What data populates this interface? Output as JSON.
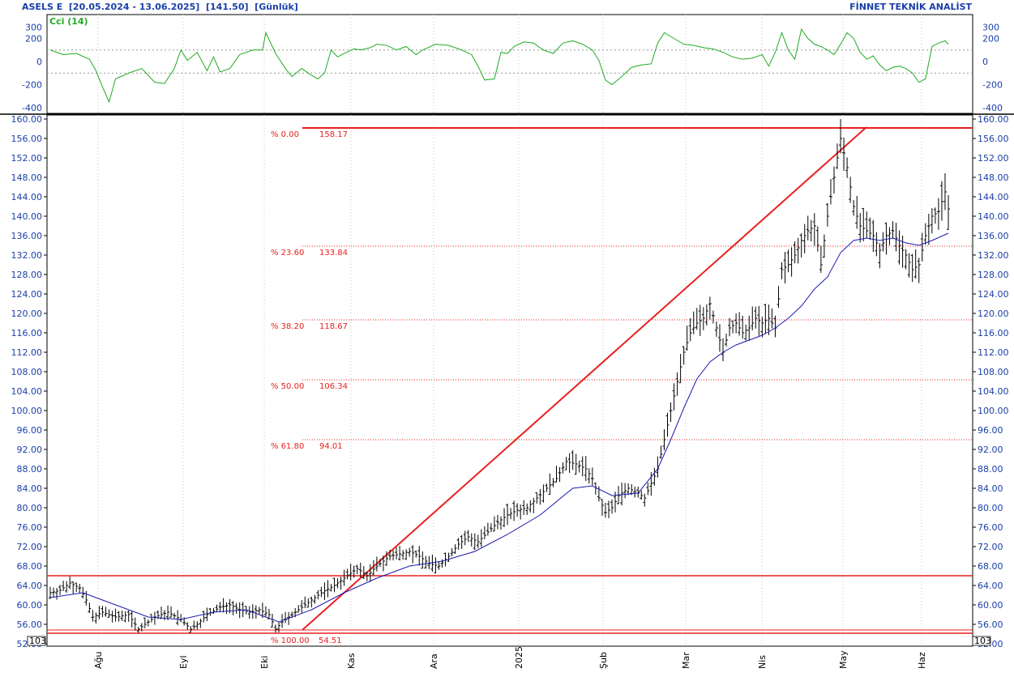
{
  "header": {
    "left": "ASELS E  [20.05.2024 - 13.06.2025]  [141.50]  [Günlük]",
    "right": "FİNNET TEKNİK ANALİST"
  },
  "indicator": {
    "name": "Cci (14)",
    "y_ticks": [
      "300",
      "200",
      "0",
      "-200",
      "-400"
    ],
    "color": "#22aa22"
  },
  "price_scale_note": "10^3",
  "colors": {
    "price_bars": "#000000",
    "moving_average": "#1a1ab0",
    "fib_lines": "#e8201e",
    "axis_labels": "#1a3fa8",
    "grid": "#cccccc"
  },
  "chart_data": {
    "type": "line",
    "symbol": "ASELS E",
    "y_ticks": [
      "160.00",
      "156.00",
      "152.00",
      "148.00",
      "144.00",
      "140.00",
      "136.00",
      "132.00",
      "128.00",
      "124.00",
      "120.00",
      "116.00",
      "112.00",
      "108.00",
      "104.00",
      "100.00",
      "96.00",
      "92.00",
      "88.00",
      "84.00",
      "80.00",
      "76.00",
      "72.00",
      "68.00",
      "64.00",
      "60.00",
      "56.00",
      "52.00"
    ],
    "ylim": [
      52,
      160
    ],
    "x_labels": [
      "Ağu",
      "Eyl",
      "Eki",
      "Kas",
      "Ara",
      "2025",
      "Şub",
      "Mar",
      "Nis",
      "May",
      "Haz"
    ],
    "price_path": [
      [
        0,
        62.5
      ],
      [
        3,
        63
      ],
      [
        6,
        64.5
      ],
      [
        9,
        63.5
      ],
      [
        11,
        61
      ],
      [
        13,
        57.5
      ],
      [
        16,
        58.5
      ],
      [
        20,
        57.5
      ],
      [
        24,
        58
      ],
      [
        27,
        55
      ],
      [
        29,
        56
      ],
      [
        32,
        57.5
      ],
      [
        36,
        58.5
      ],
      [
        40,
        57
      ],
      [
        43,
        55
      ],
      [
        45,
        56
      ],
      [
        48,
        58
      ],
      [
        52,
        59.5
      ],
      [
        55,
        60
      ],
      [
        58,
        59
      ],
      [
        61,
        58.5
      ],
      [
        64,
        59
      ],
      [
        67,
        58
      ],
      [
        69,
        55
      ],
      [
        71,
        56.5
      ],
      [
        74,
        58
      ],
      [
        77,
        59.5
      ],
      [
        80,
        61
      ],
      [
        83,
        62.5
      ],
      [
        87,
        64
      ],
      [
        91,
        66
      ],
      [
        94,
        67.5
      ],
      [
        97,
        66
      ],
      [
        100,
        68
      ],
      [
        104,
        70
      ],
      [
        107,
        70.5
      ],
      [
        110,
        71
      ],
      [
        113,
        70
      ],
      [
        116,
        68.5
      ],
      [
        119,
        68
      ],
      [
        122,
        70
      ],
      [
        125,
        72.5
      ],
      [
        128,
        74
      ],
      [
        131,
        73
      ],
      [
        134,
        75
      ],
      [
        137,
        77
      ],
      [
        140,
        78.5
      ],
      [
        143,
        79.5
      ],
      [
        146,
        80
      ],
      [
        149,
        82
      ],
      [
        152,
        84
      ],
      [
        155,
        86
      ],
      [
        158,
        89.5
      ],
      [
        161,
        89
      ],
      [
        164,
        88
      ],
      [
        166,
        86
      ],
      [
        168,
        82
      ],
      [
        170,
        79
      ],
      [
        172,
        80
      ],
      [
        174,
        82.5
      ],
      [
        177,
        84
      ],
      [
        180,
        83
      ],
      [
        182,
        82
      ],
      [
        184,
        85
      ],
      [
        186,
        88
      ],
      [
        188,
        94
      ],
      [
        190,
        100
      ],
      [
        192,
        106
      ],
      [
        194,
        112
      ],
      [
        196,
        116
      ],
      [
        198,
        118
      ],
      [
        200,
        119
      ],
      [
        202,
        122
      ],
      [
        204,
        117
      ],
      [
        206,
        112
      ],
      [
        208,
        117
      ],
      [
        210,
        118
      ],
      [
        212,
        116
      ],
      [
        214,
        117
      ],
      [
        216,
        119
      ],
      [
        218,
        118
      ],
      [
        220,
        119
      ],
      [
        222,
        117
      ],
      [
        224,
        129
      ],
      [
        226,
        130
      ],
      [
        228,
        132
      ],
      [
        230,
        135
      ],
      [
        232,
        137
      ],
      [
        234,
        138
      ],
      [
        236,
        130
      ],
      [
        238,
        140
      ],
      [
        240,
        148
      ],
      [
        242,
        156
      ],
      [
        244,
        150
      ],
      [
        246,
        142
      ],
      [
        248,
        138
      ],
      [
        250,
        137
      ],
      [
        252,
        136
      ],
      [
        254,
        133
      ],
      [
        256,
        136
      ],
      [
        258,
        137
      ],
      [
        260,
        134
      ],
      [
        262,
        132
      ],
      [
        264,
        129
      ],
      [
        266,
        130
      ],
      [
        268,
        136
      ],
      [
        270,
        140
      ],
      [
        272,
        141
      ],
      [
        274,
        145
      ],
      [
        275,
        141.5
      ]
    ],
    "ma_path": [
      [
        0,
        61.5
      ],
      [
        10,
        62.5
      ],
      [
        20,
        60
      ],
      [
        30,
        57.5
      ],
      [
        40,
        57
      ],
      [
        50,
        58.5
      ],
      [
        60,
        59
      ],
      [
        70,
        56.5
      ],
      [
        80,
        59
      ],
      [
        90,
        62.5
      ],
      [
        100,
        65.5
      ],
      [
        110,
        68
      ],
      [
        120,
        69
      ],
      [
        130,
        71
      ],
      [
        140,
        74.5
      ],
      [
        150,
        78.5
      ],
      [
        160,
        84
      ],
      [
        166,
        84.5
      ],
      [
        172,
        82.5
      ],
      [
        180,
        83
      ],
      [
        186,
        88
      ],
      [
        190,
        94
      ],
      [
        194,
        100.5
      ],
      [
        198,
        106.5
      ],
      [
        202,
        110
      ],
      [
        206,
        112
      ],
      [
        210,
        113.5
      ],
      [
        214,
        114.5
      ],
      [
        218,
        115.5
      ],
      [
        222,
        117
      ],
      [
        226,
        119
      ],
      [
        230,
        121.5
      ],
      [
        234,
        125
      ],
      [
        238,
        127.5
      ],
      [
        242,
        132.5
      ],
      [
        246,
        135
      ],
      [
        250,
        135.5
      ],
      [
        254,
        135
      ],
      [
        258,
        135.5
      ],
      [
        262,
        134.5
      ],
      [
        266,
        134
      ],
      [
        270,
        135
      ],
      [
        275,
        136.5
      ]
    ],
    "fibonacci": [
      {
        "pct": "% 0.00",
        "value": "158.17",
        "level": 158.17
      },
      {
        "pct": "% 23.60",
        "value": "133.84",
        "level": 133.84
      },
      {
        "pct": "% 38.20",
        "value": "118.67",
        "level": 118.67
      },
      {
        "pct": "% 50.00",
        "value": "106.34",
        "level": 106.34
      },
      {
        "pct": "% 61.80",
        "value": "94.01",
        "level": 94.01
      },
      {
        "pct": "% 100.00",
        "value": "54.51",
        "level": 54.51
      }
    ],
    "horizontal_lines": [
      66,
      54.2
    ],
    "trend_line": {
      "from": [
        76,
        54.51
      ],
      "to": [
        243,
        158.17
      ]
    },
    "cci_path": [
      [
        0,
        100
      ],
      [
        4,
        60
      ],
      [
        8,
        70
      ],
      [
        12,
        20
      ],
      [
        14,
        -80
      ],
      [
        16,
        -220
      ],
      [
        18,
        -350
      ],
      [
        20,
        -150
      ],
      [
        24,
        -100
      ],
      [
        28,
        -60
      ],
      [
        32,
        -180
      ],
      [
        35,
        -190
      ],
      [
        38,
        -60
      ],
      [
        40,
        100
      ],
      [
        42,
        10
      ],
      [
        45,
        80
      ],
      [
        48,
        -80
      ],
      [
        50,
        40
      ],
      [
        52,
        -90
      ],
      [
        55,
        -60
      ],
      [
        58,
        60
      ],
      [
        62,
        100
      ],
      [
        65,
        100
      ],
      [
        66,
        250
      ],
      [
        69,
        70
      ],
      [
        72,
        -60
      ],
      [
        74,
        -130
      ],
      [
        77,
        -60
      ],
      [
        80,
        -120
      ],
      [
        82,
        -150
      ],
      [
        84,
        -100
      ],
      [
        86,
        100
      ],
      [
        88,
        40
      ],
      [
        90,
        70
      ],
      [
        93,
        110
      ],
      [
        95,
        100
      ],
      [
        98,
        120
      ],
      [
        100,
        150
      ],
      [
        103,
        140
      ],
      [
        106,
        100
      ],
      [
        109,
        130
      ],
      [
        112,
        60
      ],
      [
        114,
        100
      ],
      [
        118,
        150
      ],
      [
        122,
        140
      ],
      [
        126,
        100
      ],
      [
        129,
        60
      ],
      [
        131,
        -40
      ],
      [
        133,
        -160
      ],
      [
        136,
        -150
      ],
      [
        138,
        80
      ],
      [
        140,
        70
      ],
      [
        142,
        130
      ],
      [
        145,
        170
      ],
      [
        148,
        160
      ],
      [
        151,
        100
      ],
      [
        154,
        70
      ],
      [
        157,
        160
      ],
      [
        160,
        180
      ],
      [
        163,
        150
      ],
      [
        166,
        100
      ],
      [
        168,
        10
      ],
      [
        170,
        -160
      ],
      [
        172,
        -200
      ],
      [
        175,
        -130
      ],
      [
        178,
        -50
      ],
      [
        181,
        -30
      ],
      [
        184,
        -20
      ],
      [
        186,
        160
      ],
      [
        188,
        250
      ],
      [
        191,
        200
      ],
      [
        194,
        150
      ],
      [
        197,
        140
      ],
      [
        200,
        120
      ],
      [
        203,
        110
      ],
      [
        206,
        80
      ],
      [
        209,
        40
      ],
      [
        212,
        20
      ],
      [
        215,
        30
      ],
      [
        218,
        60
      ],
      [
        220,
        -40
      ],
      [
        222,
        80
      ],
      [
        224,
        250
      ],
      [
        226,
        100
      ],
      [
        228,
        20
      ],
      [
        230,
        280
      ],
      [
        232,
        200
      ],
      [
        234,
        150
      ],
      [
        236,
        130
      ],
      [
        238,
        100
      ],
      [
        240,
        60
      ],
      [
        242,
        150
      ],
      [
        244,
        250
      ],
      [
        246,
        200
      ],
      [
        248,
        80
      ],
      [
        250,
        20
      ],
      [
        252,
        50
      ],
      [
        254,
        -30
      ],
      [
        256,
        -80
      ],
      [
        258,
        -50
      ],
      [
        260,
        -40
      ],
      [
        262,
        -60
      ],
      [
        264,
        -100
      ],
      [
        266,
        -180
      ],
      [
        268,
        -150
      ],
      [
        270,
        130
      ],
      [
        272,
        160
      ],
      [
        274,
        180
      ],
      [
        275,
        150
      ]
    ]
  }
}
